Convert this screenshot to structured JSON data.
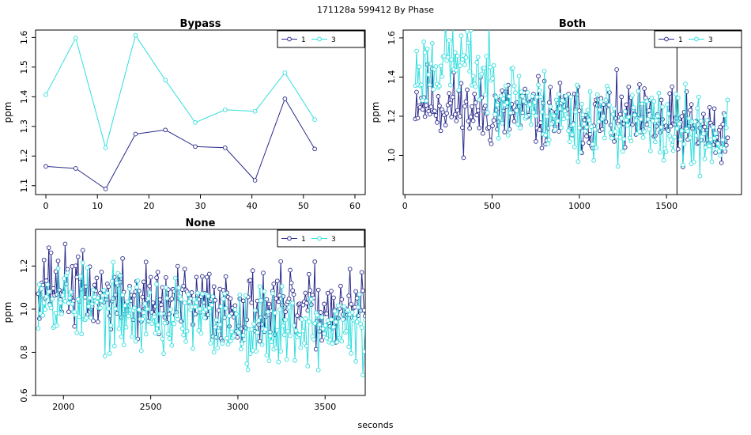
{
  "page": {
    "suptitle": "171128a    599412   By Phase",
    "xlabel": "seconds"
  },
  "chart_data": [
    {
      "type": "line",
      "title": "Bypass",
      "xlabel": "",
      "ylabel": "ppm",
      "xlim": [
        -2,
        62
      ],
      "ylim": [
        1.07,
        1.625
      ],
      "xticks": [
        0,
        10,
        20,
        30,
        40,
        50,
        60
      ],
      "yticks": [
        1.1,
        1.2,
        1.3,
        1.4,
        1.5,
        1.6
      ],
      "legend": {
        "position": "top-right",
        "entries": [
          "1",
          "3"
        ]
      },
      "series": [
        {
          "name": "1",
          "color": "#2b2b8c",
          "x": [
            0,
            5.8,
            11.6,
            17.4,
            23.2,
            29,
            34.8,
            40.6,
            46.4,
            52.2
          ],
          "y": [
            1.165,
            1.158,
            1.089,
            1.274,
            1.288,
            1.232,
            1.228,
            1.118,
            1.393,
            1.224
          ]
        },
        {
          "name": "3",
          "color": "#33dede",
          "x": [
            0,
            5.8,
            11.6,
            17.4,
            23.2,
            29,
            34.8,
            40.6,
            46.4,
            52.2
          ],
          "y": [
            1.407,
            1.598,
            1.228,
            1.607,
            1.456,
            1.313,
            1.356,
            1.351,
            1.481,
            1.323
          ]
        }
      ]
    },
    {
      "type": "line",
      "title": "Both",
      "xlabel": "",
      "ylabel": "ppm",
      "xlim": [
        -10,
        1930
      ],
      "ylim": [
        0.8,
        1.64
      ],
      "xticks": [
        0,
        500,
        1000,
        1500
      ],
      "yticks": [
        1.0,
        1.2,
        1.4,
        1.6
      ],
      "vline": 1560,
      "legend": {
        "position": "top-right",
        "entries": [
          "1",
          "3"
        ]
      },
      "series": [
        {
          "name": "1",
          "color": "#2b2b8c",
          "x_start": 60,
          "x_end": 1850,
          "n": 260,
          "trend": [
            [
              60,
              1.3
            ],
            [
              400,
              1.22
            ],
            [
              900,
              1.2
            ],
            [
              1400,
              1.17
            ],
            [
              1850,
              1.1
            ]
          ],
          "noise": 0.09,
          "seed": 11
        },
        {
          "name": "3",
          "color": "#33dede",
          "x_start": 60,
          "x_end": 1850,
          "n": 260,
          "trend": [
            [
              60,
              1.42
            ],
            [
              250,
              1.5
            ],
            [
              400,
              1.45
            ],
            [
              600,
              1.3
            ],
            [
              900,
              1.2
            ],
            [
              1400,
              1.15
            ],
            [
              1850,
              1.08
            ]
          ],
          "noise": 0.1,
          "seed": 23
        }
      ]
    },
    {
      "type": "line",
      "title": "None",
      "xlabel": "seconds",
      "ylabel": "ppm",
      "xlim": [
        1840,
        3730
      ],
      "ylim": [
        0.6,
        1.37
      ],
      "xticks": [
        2000,
        2500,
        3000,
        3500
      ],
      "yticks": [
        0.6,
        0.8,
        1.0,
        1.2
      ],
      "legend": {
        "position": "top-right",
        "entries": [
          "1",
          "3"
        ]
      },
      "series": [
        {
          "name": "1",
          "color": "#2b2b8c",
          "x_start": 1855,
          "x_end": 3730,
          "n": 280,
          "trend": [
            [
              1855,
              1.15
            ],
            [
              2200,
              1.06
            ],
            [
              2800,
              1.02
            ],
            [
              3300,
              1.0
            ],
            [
              3730,
              1.0
            ]
          ],
          "noise": 0.085,
          "seed": 37
        },
        {
          "name": "3",
          "color": "#33dede",
          "x_start": 1855,
          "x_end": 3730,
          "n": 280,
          "trend": [
            [
              1855,
              1.1
            ],
            [
              2200,
              1.0
            ],
            [
              2800,
              0.95
            ],
            [
              3300,
              0.92
            ],
            [
              3730,
              0.9
            ]
          ],
          "noise": 0.09,
          "seed": 53
        }
      ]
    }
  ]
}
